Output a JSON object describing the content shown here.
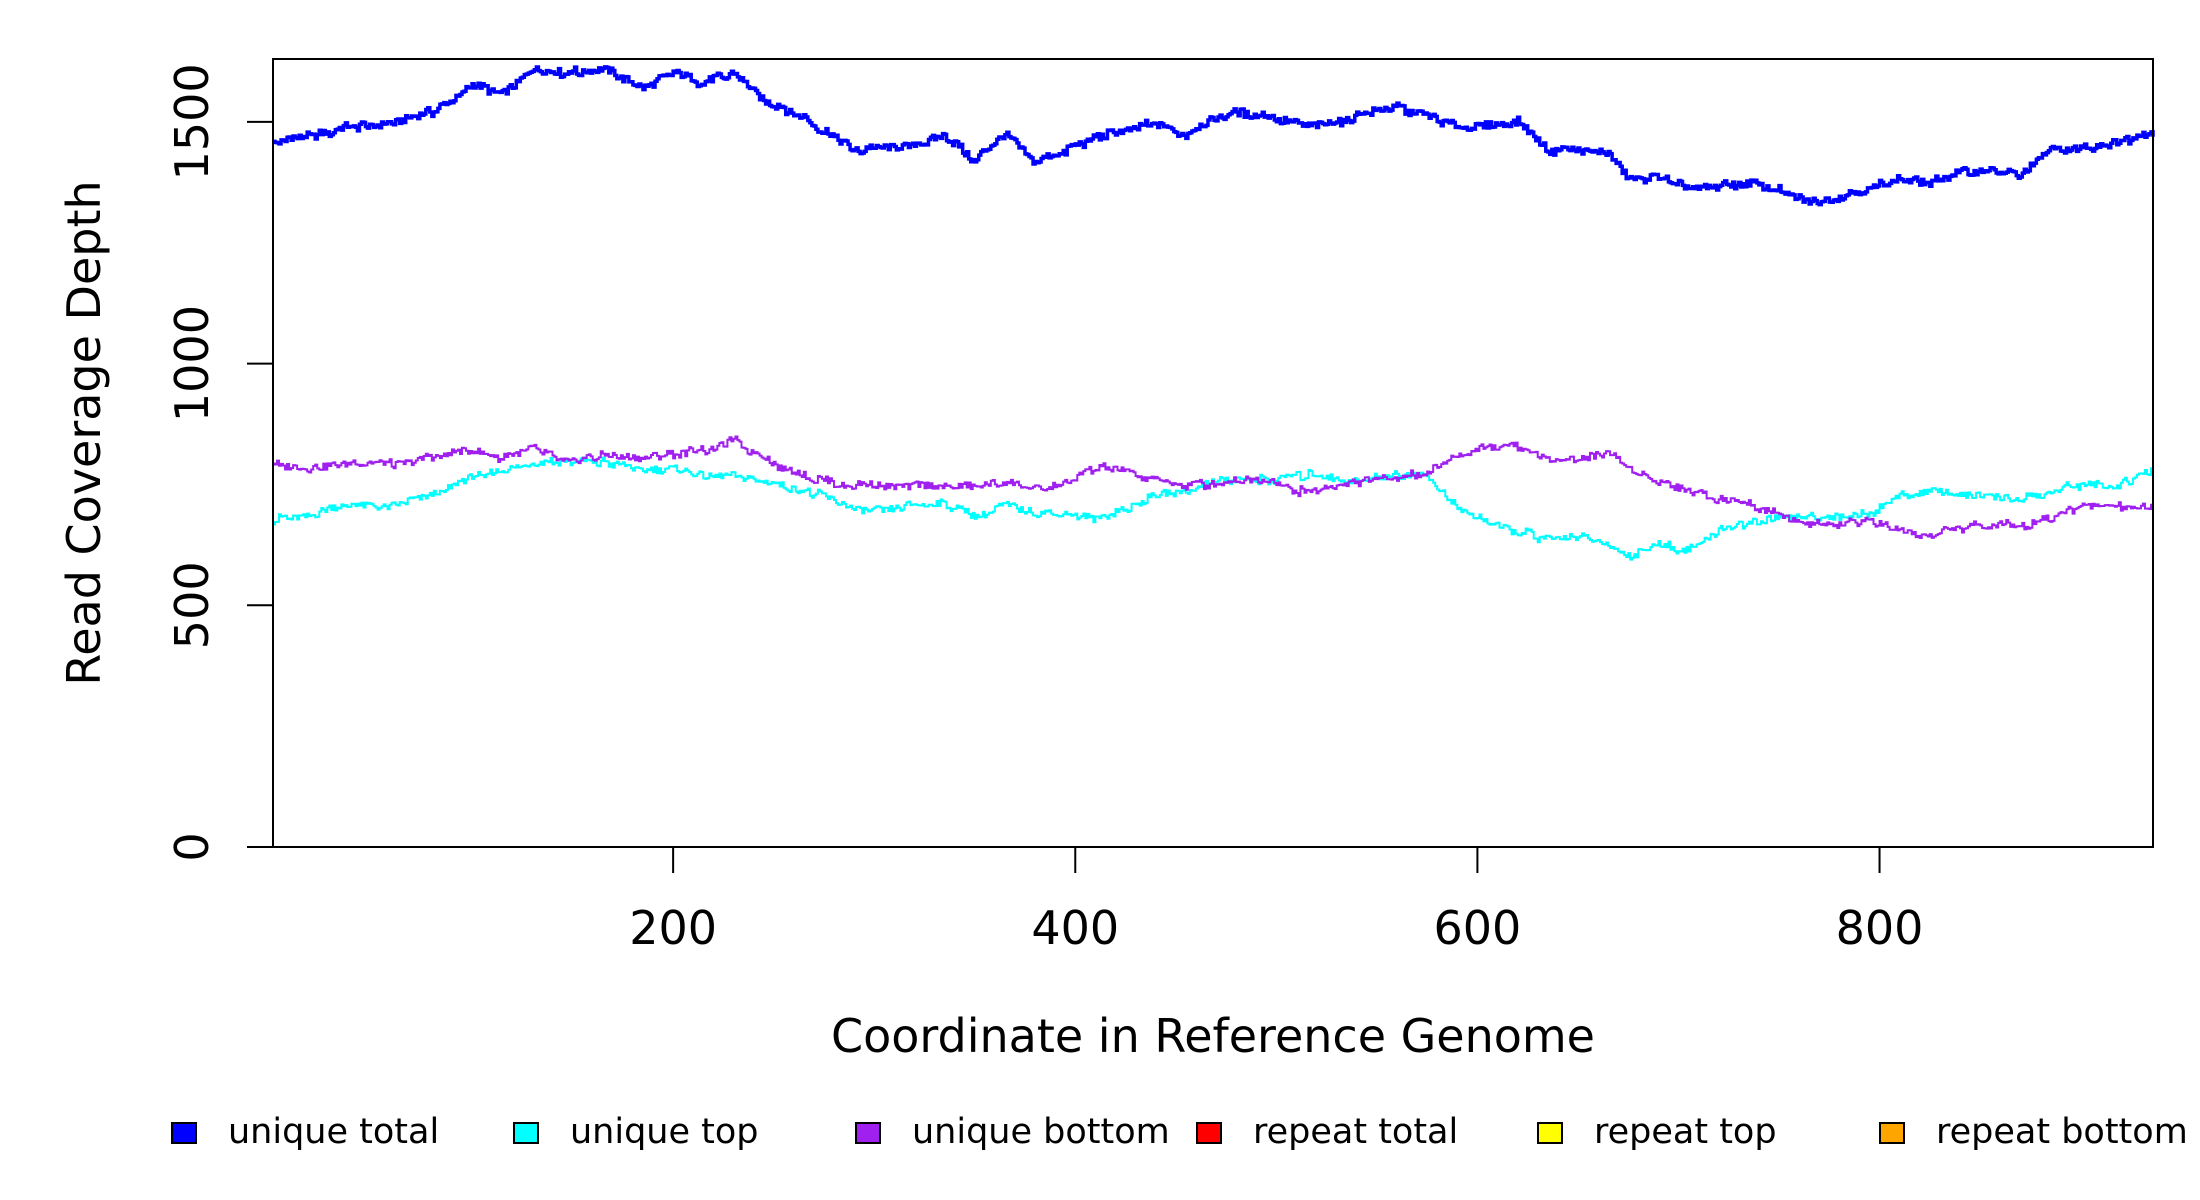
{
  "chart_data": {
    "type": "line",
    "xlabel": "Coordinate in Reference Genome",
    "ylabel": "Read Coverage Depth",
    "xlim": [
      1,
      936
    ],
    "ylim": [
      0,
      1630
    ],
    "x_ticks": [
      200,
      400,
      600,
      800
    ],
    "y_ticks": [
      0,
      500,
      1000,
      1500
    ],
    "grid": false,
    "legend_position": "bottom",
    "series": [
      {
        "name": "unique total",
        "color": "#0000ff",
        "x": [
          1,
          20,
          40,
          60,
          80,
          100,
          115,
          130,
          145,
          165,
          185,
          200,
          215,
          230,
          245,
          260,
          275,
          290,
          305,
          320,
          335,
          350,
          365,
          380,
          395,
          410,
          425,
          440,
          455,
          470,
          485,
          500,
          515,
          530,
          545,
          560,
          575,
          590,
          605,
          620,
          635,
          650,
          665,
          675,
          690,
          705,
          720,
          735,
          750,
          765,
          780,
          795,
          810,
          825,
          840,
          855,
          870,
          885,
          900,
          915,
          936
        ],
        "y": [
          1460,
          1470,
          1490,
          1495,
          1520,
          1575,
          1560,
          1610,
          1600,
          1610,
          1575,
          1600,
          1580,
          1600,
          1545,
          1520,
          1480,
          1440,
          1450,
          1455,
          1470,
          1420,
          1470,
          1420,
          1440,
          1470,
          1480,
          1500,
          1470,
          1510,
          1520,
          1505,
          1490,
          1500,
          1520,
          1530,
          1510,
          1490,
          1490,
          1500,
          1440,
          1445,
          1435,
          1380,
          1385,
          1360,
          1365,
          1375,
          1360,
          1330,
          1345,
          1365,
          1380,
          1375,
          1395,
          1400,
          1390,
          1440,
          1445,
          1455,
          1480
        ]
      },
      {
        "name": "unique top",
        "color": "#00ffff",
        "x": [
          1,
          20,
          40,
          60,
          80,
          100,
          115,
          130,
          145,
          165,
          185,
          200,
          215,
          230,
          245,
          260,
          275,
          290,
          305,
          320,
          335,
          350,
          365,
          380,
          395,
          410,
          425,
          440,
          455,
          470,
          485,
          500,
          515,
          530,
          545,
          560,
          575,
          590,
          605,
          620,
          635,
          650,
          665,
          675,
          690,
          705,
          720,
          735,
          750,
          765,
          780,
          795,
          810,
          825,
          840,
          855,
          870,
          885,
          900,
          915,
          936
        ],
        "y": [
          675,
          690,
          710,
          705,
          725,
          765,
          775,
          795,
          800,
          795,
          780,
          780,
          765,
          770,
          755,
          740,
          725,
          700,
          700,
          710,
          710,
          685,
          705,
          690,
          690,
          680,
          700,
          725,
          735,
          760,
          760,
          760,
          770,
          760,
          760,
          770,
          770,
          700,
          670,
          655,
          635,
          645,
          620,
          600,
          625,
          615,
          655,
          670,
          680,
          685,
          680,
          690,
          725,
          740,
          730,
          720,
          720,
          735,
          750,
          745,
          775
        ]
      },
      {
        "name": "unique bottom",
        "color": "#a020f0",
        "x": [
          1,
          20,
          40,
          60,
          80,
          100,
          115,
          130,
          145,
          165,
          185,
          200,
          215,
          230,
          245,
          260,
          275,
          290,
          305,
          320,
          335,
          350,
          365,
          380,
          395,
          410,
          425,
          440,
          455,
          470,
          485,
          500,
          515,
          530,
          545,
          560,
          575,
          590,
          605,
          620,
          635,
          650,
          665,
          675,
          690,
          705,
          720,
          735,
          750,
          765,
          780,
          795,
          810,
          825,
          840,
          855,
          870,
          885,
          900,
          915,
          936
        ],
        "y": [
          790,
          785,
          795,
          790,
          810,
          820,
          805,
          825,
          795,
          810,
          800,
          815,
          820,
          840,
          805,
          775,
          755,
          750,
          745,
          750,
          745,
          745,
          755,
          740,
          750,
          785,
          775,
          760,
          745,
          755,
          760,
          755,
          730,
          750,
          760,
          765,
          775,
          810,
          830,
          830,
          800,
          805,
          815,
          780,
          760,
          740,
          720,
          710,
          690,
          665,
          670,
          675,
          650,
          645,
          660,
          670,
          665,
          680,
          705,
          705,
          705
        ]
      },
      {
        "name": "repeat total",
        "color": "#ff0000",
        "x": [
          1,
          936
        ],
        "y": [
          0,
          0
        ]
      },
      {
        "name": "repeat top",
        "color": "#ffff00",
        "x": [
          1,
          936
        ],
        "y": [
          0,
          0
        ]
      },
      {
        "name": "repeat bottom",
        "color": "#ffa500",
        "x": [
          1,
          936
        ],
        "y": [
          0,
          0
        ]
      }
    ]
  }
}
